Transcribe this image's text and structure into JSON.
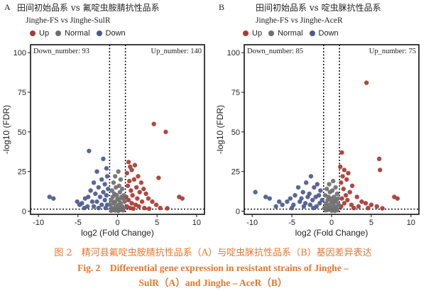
{
  "chart_data": [
    {
      "type": "scatter",
      "panel_label": "A",
      "title": "田间初始品系 vs 氟啶虫胺腈抗性品系",
      "subtitle": "Jinghe-FS vs Jinghe-SulR",
      "xlabel": "log2 (Fold Change)",
      "ylabel": "-log10 (FDR)",
      "xlim": [
        -11,
        11
      ],
      "ylim": [
        -2,
        105
      ],
      "xticks": [
        -10,
        -5,
        0,
        5,
        10
      ],
      "yticks": [
        0,
        25,
        50,
        75,
        100
      ],
      "legend": [
        "Up",
        "Normal",
        "Down"
      ],
      "legend_position": "top",
      "annotation_left": "Down_number: 93",
      "annotation_right": "Up_number: 140",
      "vlines": [
        -1,
        1
      ],
      "hline": 1.3,
      "colors": {
        "Up": "#a83a32",
        "Normal": "#6f6f6f",
        "Down": "#4a5a8c"
      },
      "series": [
        {
          "name": "Up",
          "points": [
            [
              4.6,
              55
            ],
            [
              6.1,
              50
            ],
            [
              5.2,
              21
            ],
            [
              7.8,
              9
            ],
            [
              8.2,
              8
            ],
            [
              1.4,
              31
            ],
            [
              1.6,
              28
            ],
            [
              2.2,
              29
            ],
            [
              1.2,
              24
            ],
            [
              1.8,
              26
            ],
            [
              2.6,
              22
            ],
            [
              1.5,
              19
            ],
            [
              2.1,
              20
            ],
            [
              3.0,
              18
            ],
            [
              1.3,
              16
            ],
            [
              2.4,
              15
            ],
            [
              3.3,
              14
            ],
            [
              1.7,
              13
            ],
            [
              2.8,
              12
            ],
            [
              1.9,
              10
            ],
            [
              3.6,
              11
            ],
            [
              1.1,
              9
            ],
            [
              2.5,
              8
            ],
            [
              3.9,
              8
            ],
            [
              1.4,
              7
            ],
            [
              3.1,
              6
            ],
            [
              4.4,
              6
            ],
            [
              1.8,
              5
            ],
            [
              2.3,
              4
            ],
            [
              4.9,
              4
            ],
            [
              1.2,
              3
            ],
            [
              2.7,
              3
            ],
            [
              3.4,
              2
            ],
            [
              5.4,
              2
            ],
            [
              1.6,
              2
            ],
            [
              2.0,
              1.6
            ],
            [
              4.0,
              1.6
            ],
            [
              6.3,
              1.8
            ]
          ]
        },
        {
          "name": "Down",
          "points": [
            [
              -3.6,
              38
            ],
            [
              -1.8,
              33
            ],
            [
              -2.6,
              25
            ],
            [
              -1.4,
              27
            ],
            [
              -1.3,
              22
            ],
            [
              -2.0,
              20
            ],
            [
              -3.0,
              18
            ],
            [
              -1.6,
              17
            ],
            [
              -2.4,
              15
            ],
            [
              -1.2,
              14
            ],
            [
              -3.4,
              13
            ],
            [
              -1.8,
              12
            ],
            [
              -2.8,
              11
            ],
            [
              -1.4,
              10
            ],
            [
              -3.7,
              9
            ],
            [
              -2.2,
              9
            ],
            [
              -4.1,
              8
            ],
            [
              -1.6,
              7
            ],
            [
              -2.6,
              6
            ],
            [
              -3.2,
              6
            ],
            [
              -4.5,
              5
            ],
            [
              -1.3,
              4
            ],
            [
              -2.0,
              4
            ],
            [
              -3.0,
              3
            ],
            [
              -3.8,
              3
            ],
            [
              -1.5,
              2
            ],
            [
              -2.4,
              2
            ],
            [
              -4.2,
              2
            ],
            [
              -8.6,
              9
            ],
            [
              -8.1,
              8
            ],
            [
              -5.1,
              6
            ],
            [
              -4.8,
              4
            ]
          ]
        },
        {
          "name": "Normal",
          "points": [
            [
              0.1,
              25
            ],
            [
              -0.3,
              22
            ],
            [
              0.4,
              20
            ],
            [
              -0.5,
              18
            ],
            [
              0.2,
              16
            ],
            [
              -0.2,
              15
            ],
            [
              0.6,
              14
            ],
            [
              -0.7,
              13
            ],
            [
              0.3,
              12
            ],
            [
              -0.4,
              11
            ],
            [
              0.8,
              10
            ],
            [
              -0.1,
              10
            ],
            [
              0.5,
              9
            ],
            [
              -0.6,
              9
            ],
            [
              0.0,
              8
            ],
            [
              0.7,
              8
            ],
            [
              -0.8,
              7
            ],
            [
              0.2,
              7
            ],
            [
              -0.3,
              6
            ],
            [
              0.9,
              6
            ],
            [
              0.4,
              5
            ],
            [
              -0.5,
              5
            ],
            [
              0.1,
              4
            ],
            [
              -0.9,
              4
            ],
            [
              0.6,
              3
            ],
            [
              -0.2,
              3
            ],
            [
              0.3,
              2
            ],
            [
              -0.7,
              2
            ],
            [
              0.8,
              1.8
            ],
            [
              -0.4,
              1.5
            ],
            [
              0.0,
              1.2
            ],
            [
              0.5,
              0.9
            ],
            [
              -0.6,
              0.8
            ],
            [
              0.2,
              0.6
            ],
            [
              -0.3,
              0.4
            ],
            [
              0.7,
              0.5
            ],
            [
              -0.8,
              0.3
            ],
            [
              0.1,
              0.2
            ]
          ]
        }
      ]
    },
    {
      "type": "scatter",
      "panel_label": "B",
      "title": "田间初始品系 vs 啶虫脒抗性品系",
      "subtitle": "Jinghe-FS vs Jinghe-AceR",
      "xlabel": "log2 (Fold Change)",
      "ylabel": "-log10 (FDR)",
      "xlim": [
        -11,
        11
      ],
      "ylim": [
        -2,
        105
      ],
      "xticks": [
        -10,
        -5,
        0,
        5,
        10
      ],
      "yticks": [
        0,
        25,
        50,
        75,
        100
      ],
      "legend": [
        "Up",
        "Normal",
        "Down"
      ],
      "legend_position": "top",
      "annotation_left": "Down_number: 85",
      "annotation_right": "Up_number: 75",
      "vlines": [
        -1,
        1
      ],
      "hline": 1.3,
      "colors": {
        "Up": "#a83a32",
        "Normal": "#6f6f6f",
        "Down": "#4a5a8c"
      },
      "series": [
        {
          "name": "Up",
          "points": [
            [
              4.4,
              81
            ],
            [
              6.0,
              33
            ],
            [
              6.1,
              26
            ],
            [
              1.3,
              37
            ],
            [
              1.1,
              28
            ],
            [
              1.6,
              26
            ],
            [
              2.1,
              24
            ],
            [
              1.4,
              22
            ],
            [
              1.9,
              20
            ],
            [
              1.2,
              18
            ],
            [
              2.6,
              16
            ],
            [
              1.5,
              14
            ],
            [
              2.3,
              12
            ],
            [
              1.8,
              10
            ],
            [
              3.2,
              9
            ],
            [
              1.3,
              8
            ],
            [
              2.0,
              7
            ],
            [
              3.8,
              6
            ],
            [
              1.6,
              5
            ],
            [
              4.3,
              5
            ],
            [
              2.5,
              4
            ],
            [
              5.0,
              4
            ],
            [
              1.2,
              3
            ],
            [
              3.4,
              3
            ],
            [
              7.9,
              9
            ],
            [
              8.3,
              8
            ],
            [
              5.7,
              3
            ],
            [
              2.8,
              2
            ],
            [
              4.6,
              2
            ],
            [
              6.4,
              1.8
            ]
          ]
        },
        {
          "name": "Down",
          "points": [
            [
              -2.6,
              22
            ],
            [
              -3.2,
              18
            ],
            [
              -1.8,
              17
            ],
            [
              -4.2,
              15
            ],
            [
              -2.2,
              15
            ],
            [
              -1.4,
              13
            ],
            [
              -3.6,
              12
            ],
            [
              -2.8,
              11
            ],
            [
              -1.6,
              10
            ],
            [
              -4.6,
              10
            ],
            [
              -3.0,
              9
            ],
            [
              -2.0,
              9
            ],
            [
              -5.2,
              8
            ],
            [
              -3.8,
              8
            ],
            [
              -1.2,
              7
            ],
            [
              -2.4,
              7
            ],
            [
              -4.0,
              6
            ],
            [
              -5.6,
              6
            ],
            [
              -3.3,
              5
            ],
            [
              -1.5,
              5
            ],
            [
              -2.7,
              4
            ],
            [
              -4.8,
              4
            ],
            [
              -6.2,
              4
            ],
            [
              -1.9,
              3
            ],
            [
              -3.5,
              3
            ],
            [
              -5.0,
              2
            ],
            [
              -2.3,
              2
            ],
            [
              -9.6,
              12
            ],
            [
              -8.3,
              9
            ],
            [
              -7.8,
              8
            ],
            [
              -6.6,
              6
            ],
            [
              -7.0,
              3
            ]
          ]
        },
        {
          "name": "Normal",
          "points": [
            [
              0.2,
              19
            ],
            [
              -0.3,
              17
            ],
            [
              0.5,
              15
            ],
            [
              -0.6,
              14
            ],
            [
              0.1,
              13
            ],
            [
              -0.2,
              12
            ],
            [
              0.7,
              11
            ],
            [
              -0.8,
              10
            ],
            [
              0.3,
              9
            ],
            [
              -0.4,
              9
            ],
            [
              0.8,
              8
            ],
            [
              -0.1,
              8
            ],
            [
              0.4,
              7
            ],
            [
              -0.5,
              7
            ],
            [
              0.0,
              6
            ],
            [
              0.6,
              6
            ],
            [
              -0.7,
              5
            ],
            [
              0.2,
              5
            ],
            [
              -0.3,
              4
            ],
            [
              0.9,
              4
            ],
            [
              0.5,
              3
            ],
            [
              -0.6,
              3
            ],
            [
              0.1,
              2.5
            ],
            [
              -0.9,
              2
            ],
            [
              0.6,
              1.8
            ],
            [
              -0.2,
              1.5
            ],
            [
              0.3,
              1.1
            ],
            [
              -0.4,
              0.9
            ],
            [
              0.7,
              0.6
            ],
            [
              -0.7,
              0.5
            ],
            [
              0.0,
              0.3
            ],
            [
              0.4,
              0.2
            ]
          ]
        }
      ]
    }
  ],
  "caption": {
    "cn": "图 2　精河县氟啶虫胺腈抗性品系（A）与啶虫脒抗性品系（B）基因差异表达",
    "en_line1": "Fig. 2　Differential gene expression in resistant strains of Jinghe –",
    "en_line2": "SulR（A）and Jinghe – AceR（B）"
  }
}
